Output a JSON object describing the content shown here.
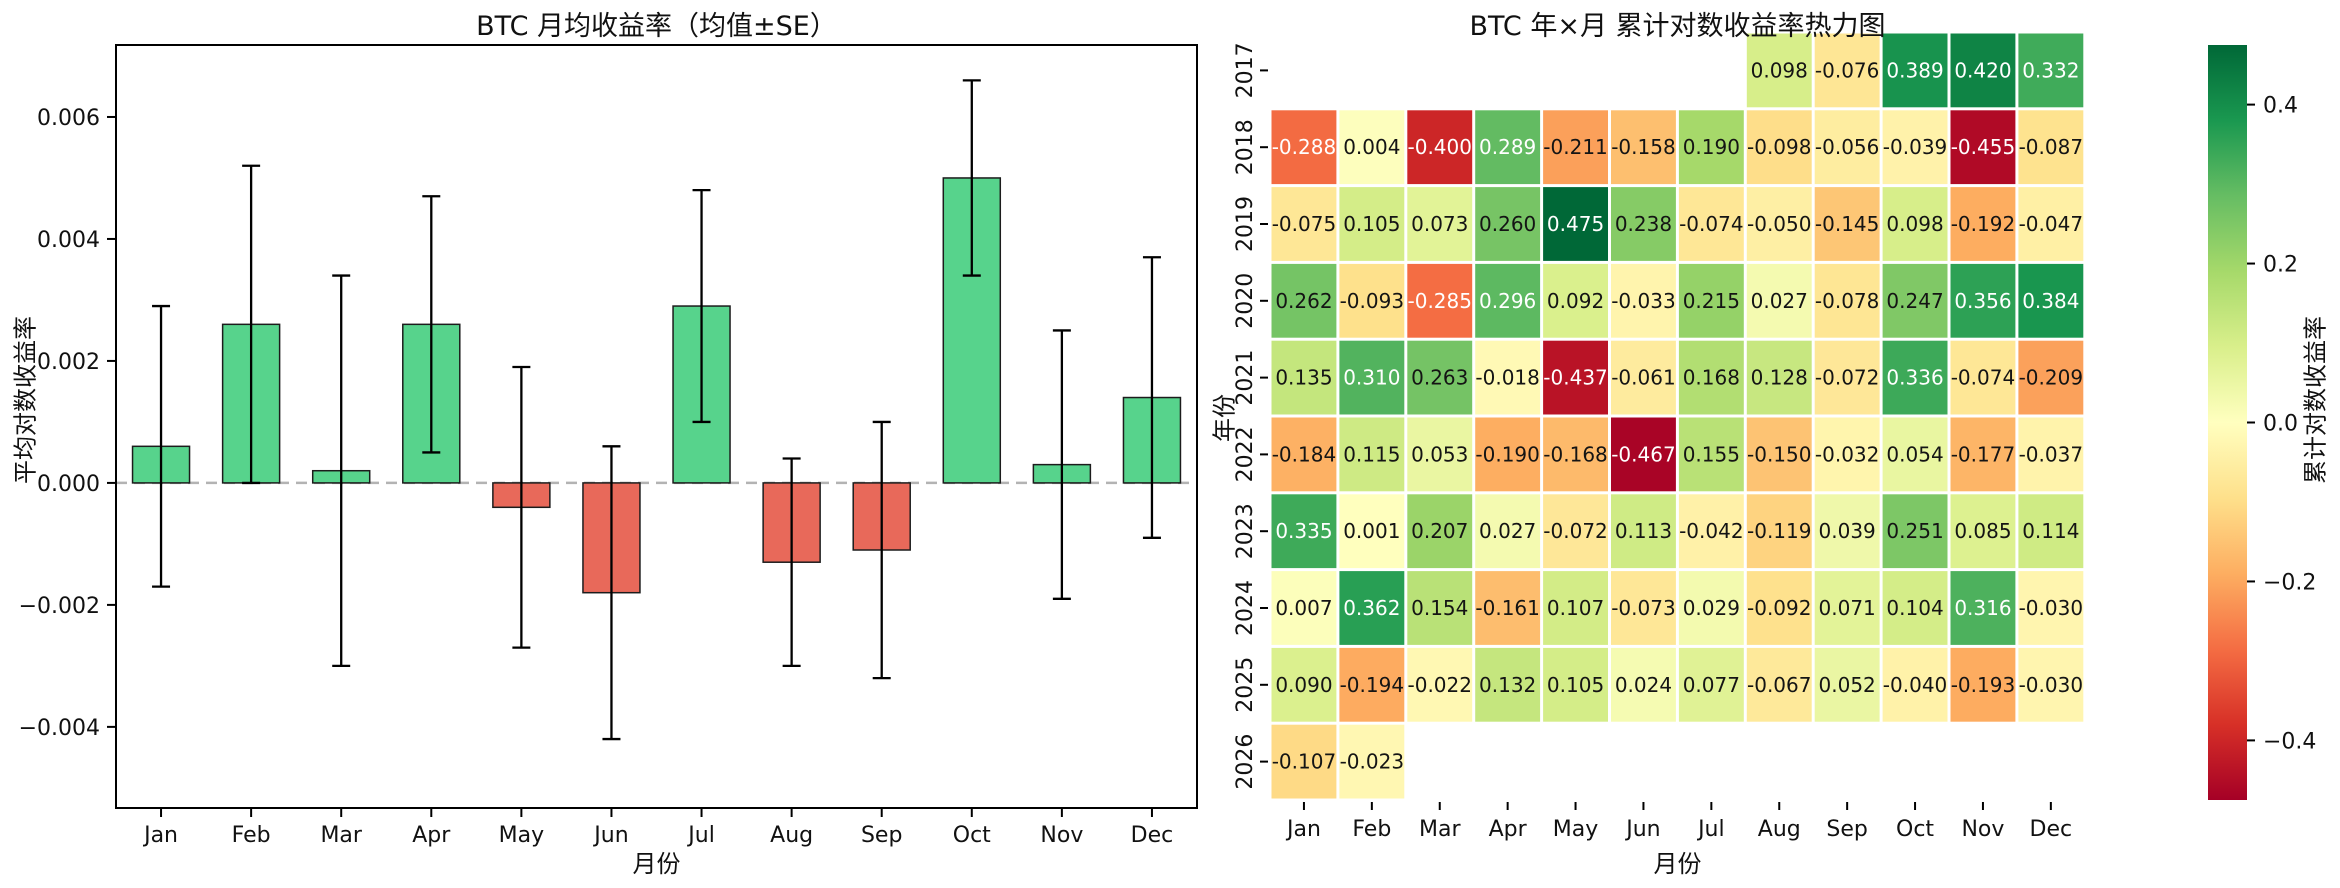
{
  "left_chart": {
    "title": "BTC 月均收益率（均值±SE）",
    "xlabel": "月份",
    "ylabel": "平均对数收益率"
  },
  "right_chart": {
    "title": "BTC 年×月 累计对数收益率热力图",
    "xlabel": "月份",
    "ylabel": "年份",
    "colorbar_label": "累计对数收益率"
  },
  "chart_data": [
    {
      "type": "bar",
      "title": "BTC 月均收益率（均值±SE）",
      "xlabel": "月份",
      "ylabel": "平均对数收益率",
      "categories": [
        "Jan",
        "Feb",
        "Mar",
        "Apr",
        "May",
        "Jun",
        "Jul",
        "Aug",
        "Sep",
        "Oct",
        "Nov",
        "Dec"
      ],
      "values": [
        0.0006,
        0.0026,
        0.0002,
        0.0026,
        -0.0004,
        -0.0018,
        0.0029,
        -0.0013,
        -0.0011,
        0.005,
        0.0003,
        0.0014
      ],
      "errors": [
        0.0023,
        0.0026,
        0.0032,
        0.0021,
        0.0023,
        0.0024,
        0.0019,
        0.0017,
        0.0021,
        0.0016,
        0.0022,
        0.0023
      ],
      "yticks": [
        0.006,
        0.004,
        0.002,
        0.0,
        -0.002,
        -0.004
      ],
      "ylim": [
        -0.00533,
        0.00718
      ],
      "positive_color": "#57d38c",
      "negative_color": "#e8695a",
      "bar_edge_color": "#1c1c1c",
      "zero_line_color": "#b3b3b3",
      "zero_line_style": "dashed"
    },
    {
      "type": "heatmap",
      "title": "BTC 年×月 累计对数收益率热力图",
      "xlabel": "月份",
      "ylabel": "年份",
      "colorbar_label": "累计对数收益率",
      "columns": [
        "Jan",
        "Feb",
        "Mar",
        "Apr",
        "May",
        "Jun",
        "Jul",
        "Aug",
        "Sep",
        "Oct",
        "Nov",
        "Dec"
      ],
      "rows": [
        "2017",
        "2018",
        "2019",
        "2020",
        "2021",
        "2022",
        "2023",
        "2024",
        "2025",
        "2026"
      ],
      "values": [
        [
          null,
          null,
          null,
          null,
          null,
          null,
          null,
          0.098,
          -0.076,
          0.389,
          0.42,
          0.332
        ],
        [
          -0.288,
          0.004,
          -0.4,
          0.289,
          -0.211,
          -0.158,
          0.19,
          -0.098,
          -0.056,
          -0.039,
          -0.455,
          -0.087
        ],
        [
          -0.075,
          0.105,
          0.073,
          0.26,
          0.475,
          0.238,
          -0.074,
          -0.05,
          -0.145,
          0.098,
          -0.192,
          -0.047
        ],
        [
          0.262,
          -0.093,
          -0.285,
          0.296,
          0.092,
          -0.033,
          0.215,
          0.027,
          -0.078,
          0.247,
          0.356,
          0.384
        ],
        [
          0.135,
          0.31,
          0.263,
          -0.018,
          -0.437,
          -0.061,
          0.168,
          0.128,
          -0.072,
          0.336,
          -0.074,
          -0.209
        ],
        [
          -0.184,
          0.115,
          0.053,
          -0.19,
          -0.168,
          -0.467,
          0.155,
          -0.15,
          -0.032,
          0.054,
          -0.177,
          -0.037
        ],
        [
          0.335,
          0.001,
          0.207,
          0.027,
          -0.072,
          0.113,
          -0.042,
          -0.119,
          0.039,
          0.251,
          0.085,
          0.114
        ],
        [
          0.007,
          0.362,
          0.154,
          -0.161,
          0.107,
          -0.073,
          0.029,
          -0.092,
          0.071,
          0.104,
          0.316,
          -0.03
        ],
        [
          0.09,
          -0.194,
          -0.022,
          0.132,
          0.105,
          0.024,
          0.077,
          -0.067,
          0.052,
          -0.04,
          -0.193,
          -0.03
        ],
        [
          -0.107,
          -0.023,
          null,
          null,
          null,
          null,
          null,
          null,
          null,
          null,
          null,
          null
        ]
      ],
      "vmin": -0.475,
      "vmax": 0.475,
      "colormap": "RdYlGn",
      "colorbar_ticks": [
        0.4,
        0.2,
        0.0,
        -0.2,
        -0.4
      ],
      "cell_gap_color": "#ffffff"
    }
  ]
}
